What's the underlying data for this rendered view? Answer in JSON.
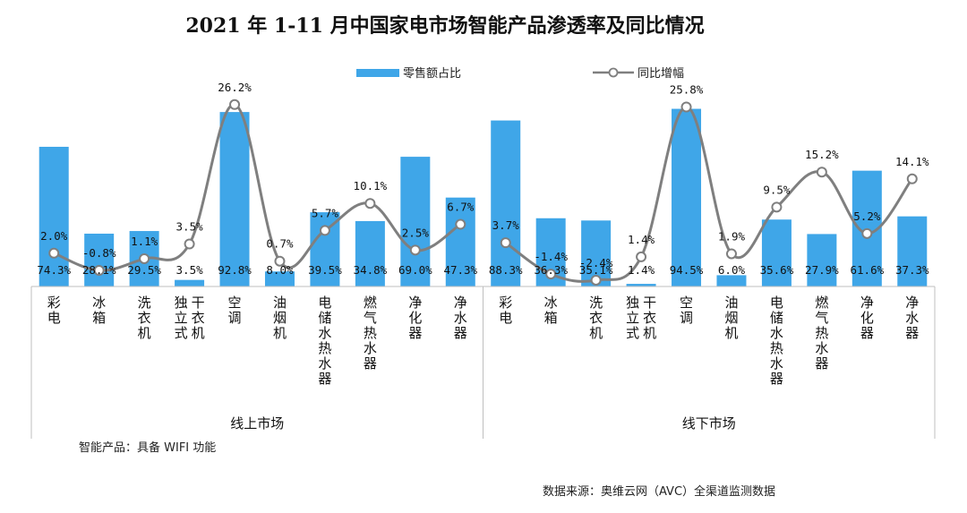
{
  "title": "2021 年 1-11 月中国家电市场智能产品渗透率及同比情况",
  "legend": {
    "bar_label": "零售额占比",
    "line_label": "同比增幅"
  },
  "colors": {
    "bar": "#3FA6E8",
    "line": "#7F7F7F",
    "marker_fill": "#FFFFFF"
  },
  "note": "智能产品：具备 WIFI 功能",
  "source": "数据来源：奥维云网（AVC）全渠道监测数据",
  "chart_data": {
    "type": "bar+line",
    "title": "2021 年 1-11 月中国家电市场智能产品渗透率及同比情况",
    "legend_position": "top",
    "grid": false,
    "groups": [
      {
        "name": "线上市场",
        "categories": [
          [
            "彩电"
          ],
          [
            "冰箱"
          ],
          [
            "洗衣机"
          ],
          [
            "独立式",
            "干衣机"
          ],
          [
            "空调"
          ],
          [
            "油烟机"
          ],
          [
            "电储水热水器"
          ],
          [
            "燃气热水器"
          ],
          [
            "净化器"
          ],
          [
            "净水器"
          ]
        ],
        "share_labels": [
          "74.3%",
          "28.1%",
          "29.5%",
          "3.5%",
          "92.8%",
          "8.0%",
          "39.5%",
          "34.8%",
          "69.0%",
          "47.3%"
        ],
        "share": [
          74.3,
          28.1,
          29.5,
          3.5,
          92.8,
          8.0,
          39.5,
          34.8,
          69.0,
          47.3
        ],
        "yoy_labels": [
          "2.0%",
          "-0.8%",
          "1.1%",
          "3.5%",
          "26.2%",
          "0.7%",
          "5.7%",
          "10.1%",
          "2.5%",
          "6.7%"
        ],
        "yoy": [
          2.0,
          -0.8,
          1.1,
          3.5,
          26.2,
          0.7,
          5.7,
          10.1,
          2.5,
          6.7
        ]
      },
      {
        "name": "线下市场",
        "categories": [
          [
            "彩电"
          ],
          [
            "冰箱"
          ],
          [
            "洗衣机"
          ],
          [
            "独立式",
            "干衣机"
          ],
          [
            "空调"
          ],
          [
            "油烟机"
          ],
          [
            "电储水热水器"
          ],
          [
            "燃气热水器"
          ],
          [
            "净化器"
          ],
          [
            "净水器"
          ]
        ],
        "share_labels": [
          "88.3%",
          "36.3%",
          "35.1%",
          "1.4%",
          "94.5%",
          "6.0%",
          "35.6%",
          "27.9%",
          "61.6%",
          "37.3%"
        ],
        "share": [
          88.3,
          36.3,
          35.1,
          1.4,
          94.5,
          6.0,
          35.6,
          27.9,
          61.6,
          37.3
        ],
        "yoy_labels": [
          "3.7%",
          "-1.4%",
          "-2.4%",
          "1.4%",
          "25.8%",
          "1.9%",
          "9.5%",
          "15.2%",
          "5.2%",
          "14.1%"
        ],
        "yoy": [
          3.7,
          -1.4,
          -2.4,
          1.4,
          25.8,
          1.9,
          9.5,
          15.2,
          5.2,
          14.1
        ]
      }
    ]
  }
}
